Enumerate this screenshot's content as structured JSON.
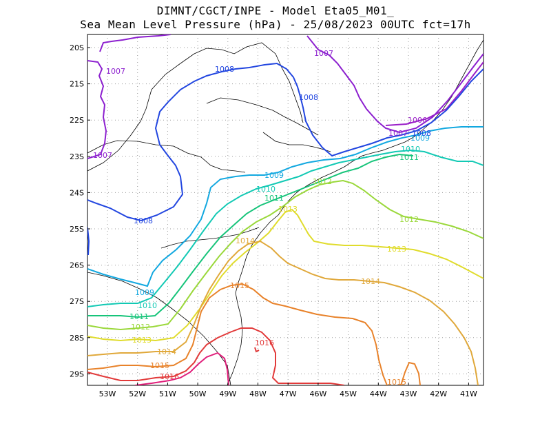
{
  "title_line1": "DIMNT/CGCT/INPE -  Model Eta05_M01_",
  "title_line2": "Sea Mean Level Pressure (hPa) - 25/08/2023 00UTC fct=17h",
  "lat_ticks": [
    "20S",
    "21S",
    "22S",
    "23S",
    "24S",
    "25S",
    "26S",
    "27S",
    "28S",
    "29S"
  ],
  "lon_ticks": [
    "53W",
    "52W",
    "51W",
    "50W",
    "49W",
    "48W",
    "47W",
    "46W",
    "45W",
    "44W",
    "43W",
    "42W",
    "41W"
  ],
  "colors": {
    "1006": "#9a1fc8",
    "1007": "#8c1fcf",
    "1008": "#2246e0",
    "1009": "#12a8e0",
    "1010": "#12c9b4",
    "1011": "#16c47a",
    "1012": "#9ad83a",
    "1013": "#e0dc2c",
    "1014": "#e0a83a",
    "1015": "#e8822a",
    "1016": "#e23a3a",
    "1017": "#e01e7a",
    "coast": "#000000"
  },
  "contour_labels": {
    "l1006": "1006",
    "l1007": "1007",
    "l1008": "1008",
    "l1009": "1009",
    "l1010": "1010",
    "l1011": "1011",
    "l1012": "1012",
    "l1013": "1013",
    "l1014": "1014",
    "l1015": "1015",
    "l1016": "1016"
  }
}
